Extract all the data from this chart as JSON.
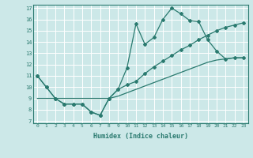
{
  "xlabel": "Humidex (Indice chaleur)",
  "ylabel": "",
  "xlim": [
    -0.5,
    23.5
  ],
  "ylim": [
    6.8,
    17.3
  ],
  "xticks": [
    0,
    1,
    2,
    3,
    4,
    5,
    6,
    7,
    8,
    9,
    10,
    11,
    12,
    13,
    14,
    15,
    16,
    17,
    18,
    19,
    20,
    21,
    22,
    23
  ],
  "yticks": [
    7,
    8,
    9,
    10,
    11,
    12,
    13,
    14,
    15,
    16,
    17
  ],
  "bg_color": "#cce8e8",
  "line_color": "#2a7a6f",
  "grid_color": "#ffffff",
  "line1_x": [
    0,
    1,
    2,
    3,
    4,
    5,
    6,
    7,
    8,
    9,
    10,
    11,
    12,
    13,
    14,
    15,
    16,
    17,
    18,
    19,
    20,
    21,
    22,
    23
  ],
  "line1_y": [
    11,
    10,
    9,
    8.5,
    8.5,
    8.5,
    7.8,
    7.5,
    9.0,
    9.8,
    11.7,
    15.6,
    13.8,
    14.4,
    16.0,
    17.0,
    16.5,
    15.9,
    15.8,
    14.2,
    13.2,
    12.5,
    12.6,
    12.6
  ],
  "line2_x": [
    0,
    1,
    2,
    3,
    4,
    5,
    6,
    7,
    8,
    9,
    10,
    11,
    12,
    13,
    14,
    15,
    16,
    17,
    18,
    19,
    20,
    21,
    22,
    23
  ],
  "line2_y": [
    11,
    10,
    9,
    8.5,
    8.5,
    8.5,
    7.8,
    7.5,
    9.0,
    9.8,
    10.2,
    10.5,
    11.2,
    11.8,
    12.3,
    12.8,
    13.3,
    13.7,
    14.2,
    14.6,
    15.0,
    15.3,
    15.5,
    15.7
  ],
  "line3_x": [
    0,
    1,
    2,
    3,
    4,
    5,
    6,
    7,
    8,
    9,
    10,
    11,
    12,
    13,
    14,
    15,
    16,
    17,
    18,
    19,
    20,
    21,
    22,
    23
  ],
  "line3_y": [
    9.0,
    9.0,
    9.0,
    9.0,
    9.0,
    9.0,
    9.0,
    9.0,
    9.0,
    9.2,
    9.5,
    9.8,
    10.1,
    10.4,
    10.7,
    11.0,
    11.3,
    11.6,
    11.9,
    12.2,
    12.4,
    12.5,
    12.6,
    12.6
  ]
}
